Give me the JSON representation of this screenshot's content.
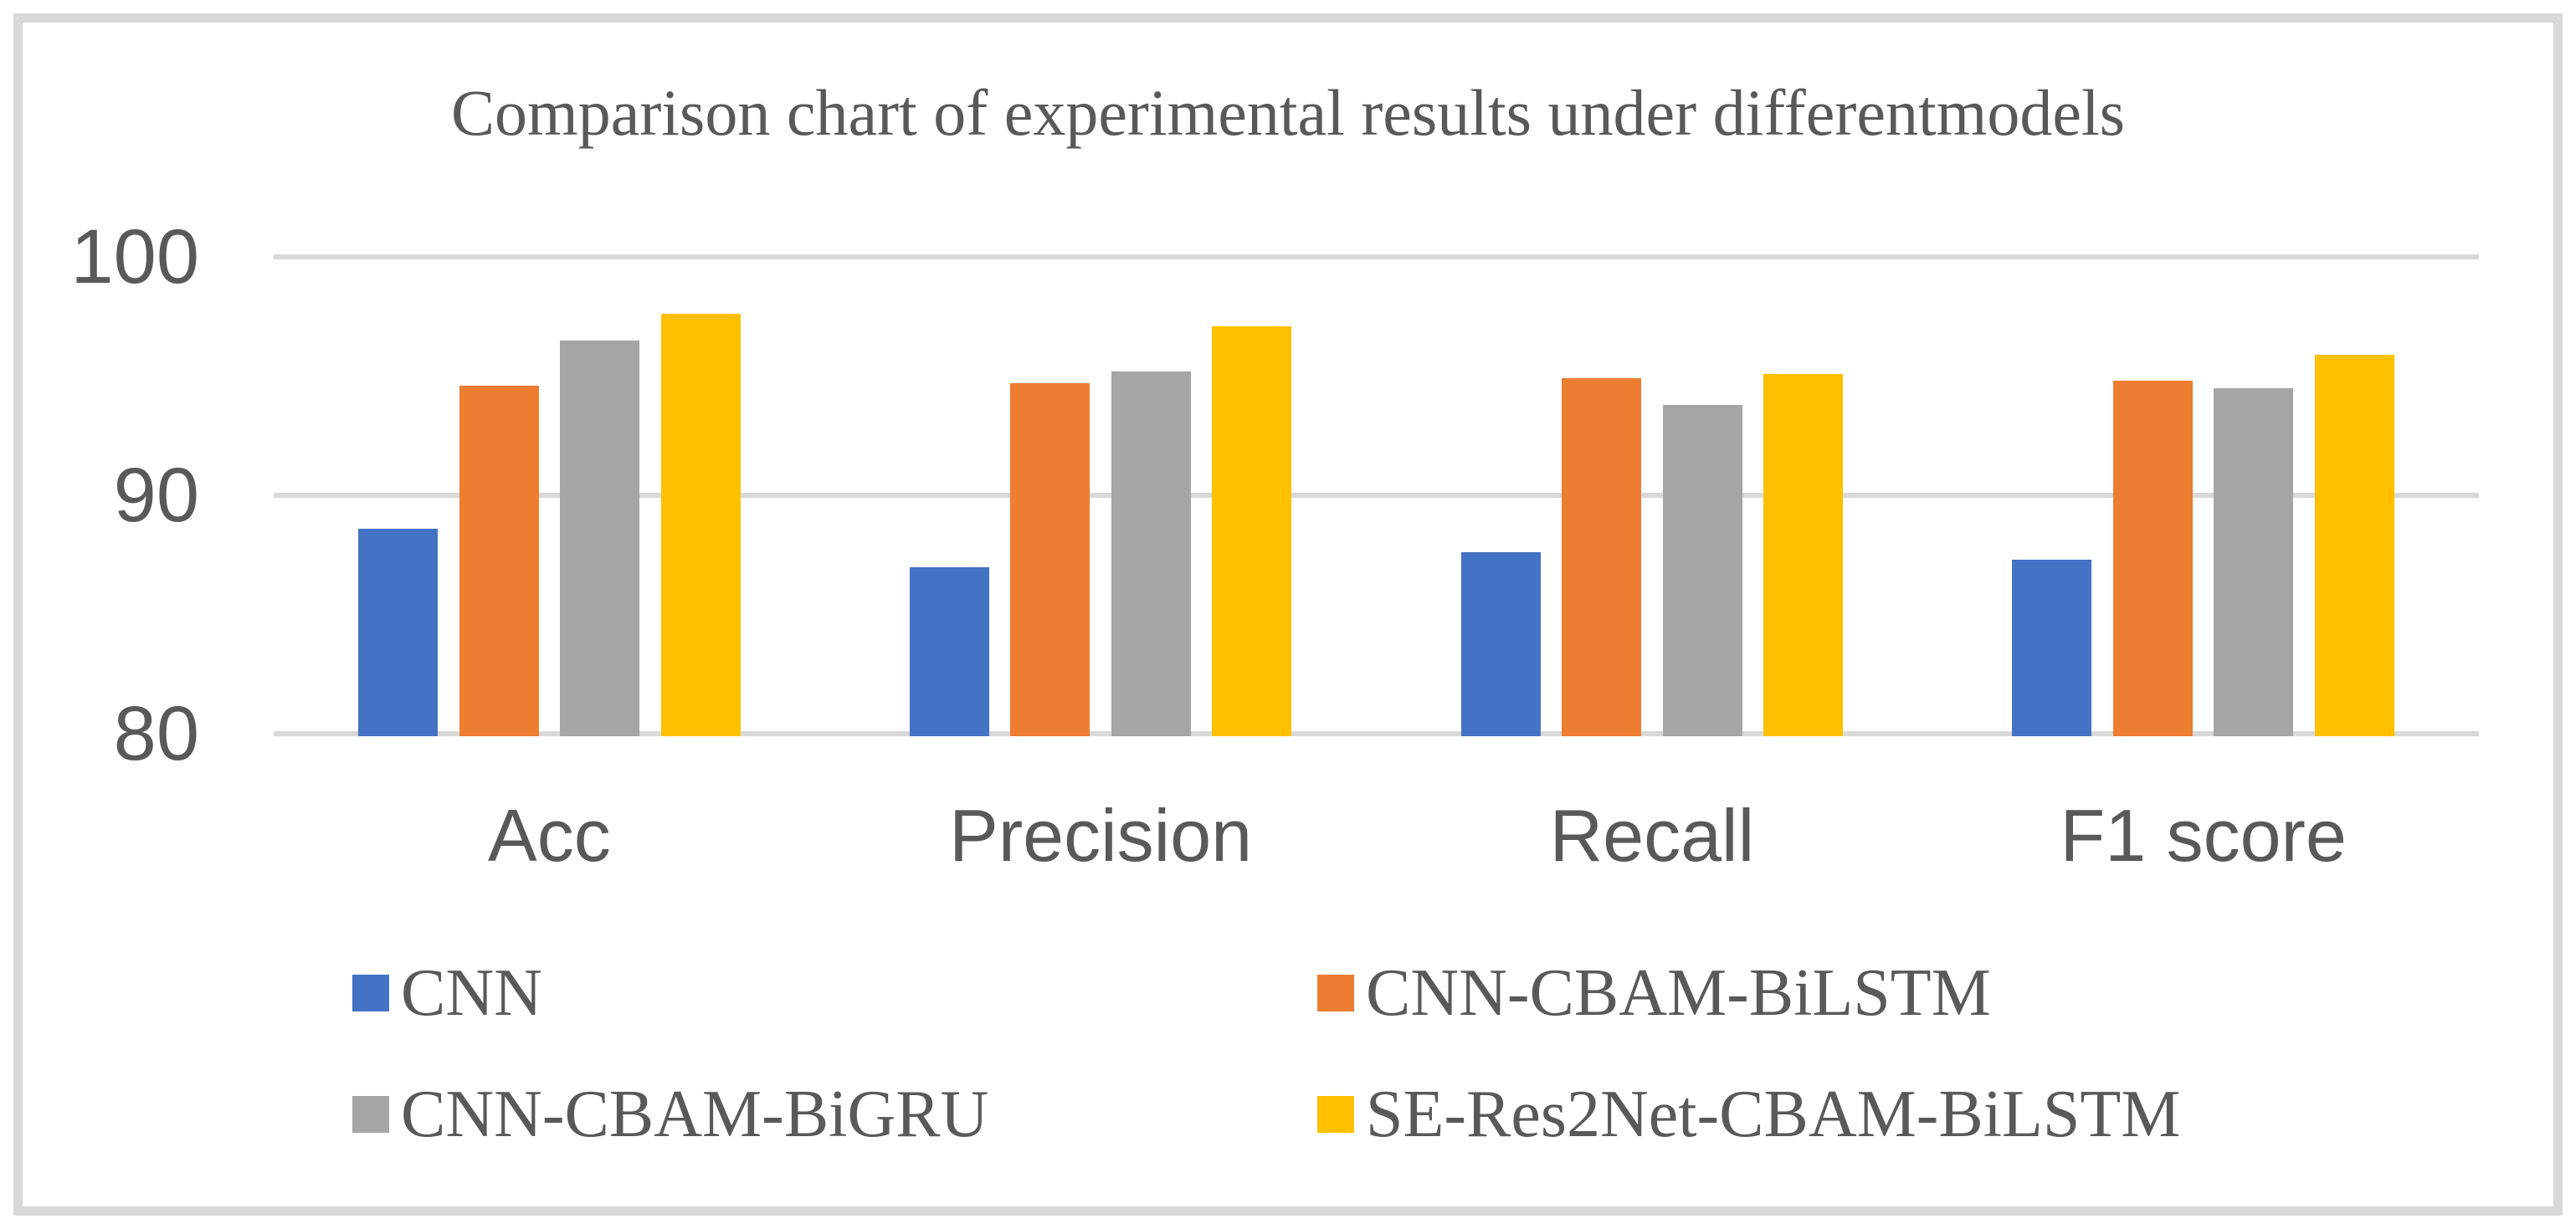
{
  "figure": {
    "title": "Comparison chart of experimental results under differentmodels"
  },
  "chart_data": {
    "type": "bar",
    "title": "Comparison chart of experimental results under differentmodels",
    "categories": [
      "Acc",
      "Precision",
      "Recall",
      "F1 score"
    ],
    "series": [
      {
        "name": "CNN",
        "color": "#4472C4",
        "values": [
          88.6,
          87.0,
          87.6,
          87.3
        ]
      },
      {
        "name": "CNN-CBAM-BiLSTM",
        "color": "#ED7D31",
        "values": [
          94.6,
          94.7,
          94.9,
          94.8
        ]
      },
      {
        "name": "CNN-CBAM-BiGRU",
        "color": "#A5A5A5",
        "values": [
          96.5,
          95.2,
          93.8,
          94.5
        ]
      },
      {
        "name": "SE-Res2Net-CBAM-BiLSTM",
        "color": "#FFC000",
        "values": [
          97.6,
          97.1,
          95.1,
          95.9
        ]
      }
    ],
    "xlabel": "",
    "ylabel": "",
    "ylim": [
      80,
      100
    ],
    "yticks": [
      100,
      90,
      80
    ],
    "grid": true,
    "legend_position": "bottom-two-columns"
  },
  "colors": {
    "gridline": "#D9D9D9",
    "text": "#595959",
    "frame_border": "#D9D9D9",
    "background": "#FFFFFF"
  }
}
